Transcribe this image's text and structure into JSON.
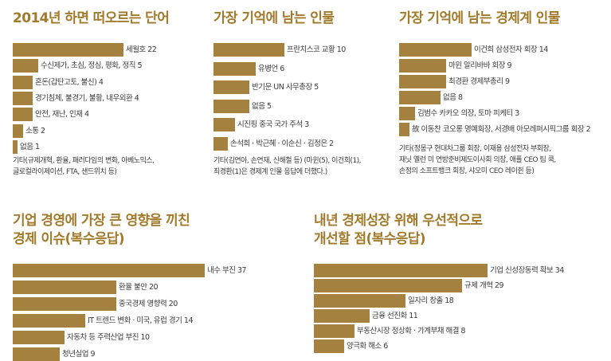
{
  "chart_data": [
    {
      "type": "bar",
      "title": "2014년 하면 떠오르는 단어",
      "categories": [
        "세월호",
        "수신제가, 초심, 정심, 평화, 정직",
        "혼돈(갑탄고토, 불신)",
        "경기침체, 불경기, 불황, 내우외환",
        "안전, 재난, 인재",
        "소통",
        "없음"
      ],
      "values": [
        22,
        5,
        4,
        4,
        4,
        2,
        1
      ],
      "note": "기타(규제개혁, 환율, 패러다임의 변화, 아베노믹스,\n글로컬라이제이션, FTA, 샌드위치 등)"
    },
    {
      "type": "bar",
      "title": "가장 기억에 남는 인물",
      "categories": [
        "프란치스코 교황",
        "유병언",
        "반기문 UN 사무총장",
        "없음",
        "시진핑 중국 국가 주석",
        "손석희 · 박근혜 · 이순신 · 김정은"
      ],
      "values": [
        10,
        6,
        5,
        5,
        3,
        2
      ],
      "note": "기타(김연아, 손연재, 신해철 등) (마윈(5), 이건희(1),\n최경환(1)은 경제계 인물 응답에 더했다.)"
    },
    {
      "type": "bar",
      "title": "가장 기억에 남는 경제계 인물",
      "categories": [
        "이건희 삼성전자 회장",
        "마윈 알리바바 회장",
        "최경환 경제부총리",
        "없음",
        "김범수 카카오 의장, 토마 피케티",
        "故 이동찬 코오롱 명예회장, 서경배 아모레퍼시픽그룹 회장"
      ],
      "values": [
        14,
        9,
        9,
        8,
        3,
        2
      ],
      "note": "기타(정몽구 현대차그룹 회장, 이재용 삼성전자 부회장,\n재닛 옐런 미 연방준비제도이사회 의장, 애플 CEO 팀 쿡,\n손정의 소프트뱅크 회장, 샤오미 CEO 레이쥔 등)"
    },
    {
      "type": "bar",
      "title": "기업 경영에 가장 큰 영향을 끼친\n경제 이슈(복수응답)",
      "categories": [
        "내수 부진",
        "환율 불안",
        "중국경제 영향력",
        "IT 트렌드 변화 · 미국, 유럽 경기",
        "자동차 등 주력산업 부진",
        "청년실업"
      ],
      "values": [
        37,
        20,
        20,
        14,
        10,
        9
      ],
      "note": ""
    },
    {
      "type": "bar",
      "title": "내년 경제성장 위해 우선적으로\n개선할 점(복수응답)",
      "categories": [
        "기업 신성장동력 확보",
        "규제 개혁",
        "일자리 창출",
        "금융 선진화",
        "부동산시장 정상화 · 가계부채 해결",
        "양극화 해소"
      ],
      "values": [
        34,
        29,
        18,
        11,
        8,
        6
      ],
      "note": ""
    }
  ],
  "colors": {
    "bar": "#a4813e",
    "title": "#a27a2a",
    "text": "#3a3a3a"
  }
}
